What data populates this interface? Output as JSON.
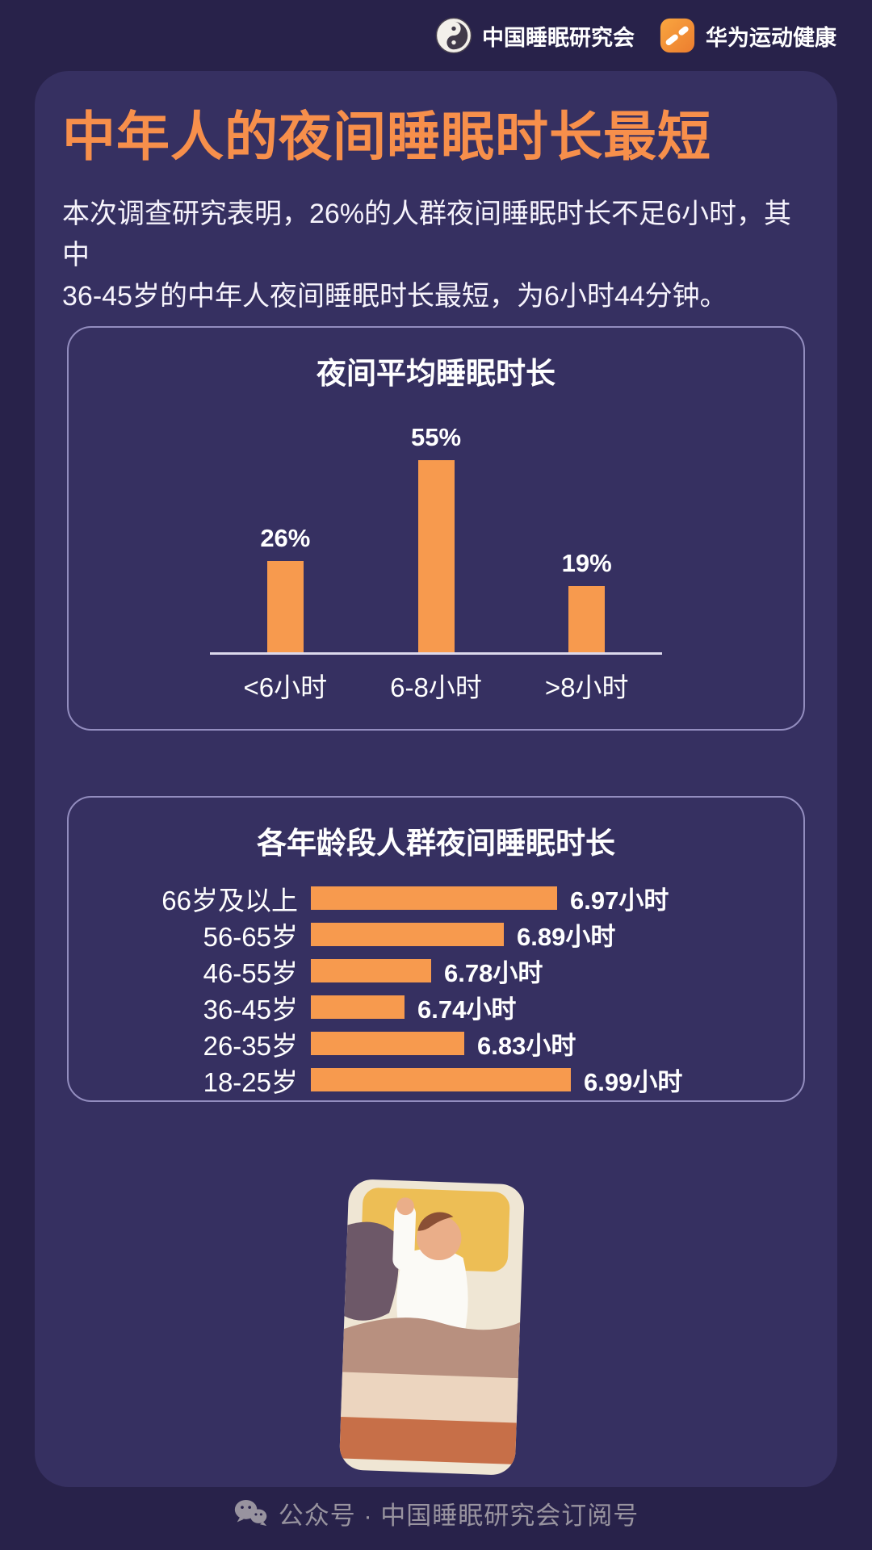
{
  "colors": {
    "background": "#28224a",
    "card": "#363061",
    "accent": "#f78f4b",
    "bar": "#f79a4e",
    "box_border": "#938dbf",
    "axis": "#dcd9ec",
    "text": "#f6f3fc",
    "footer_text": "#98939f"
  },
  "header": {
    "org1": "中国睡眠研究会",
    "org2": "华为运动健康"
  },
  "title": "中年人的夜间睡眠时长最短",
  "intro": {
    "line1": "本次调查研究表明，26%的人群夜间睡眠时长不足6小时，其中",
    "line2": "36-45岁的中年人夜间睡眠时长最短，为6小时44分钟。"
  },
  "chart_data": [
    {
      "type": "bar",
      "title": "夜间平均睡眠时长",
      "categories": [
        "<6小时",
        "6-8小时",
        ">8小时"
      ],
      "values": [
        26,
        55,
        19
      ],
      "unit": "%",
      "ylim": [
        0,
        60
      ],
      "grid": false,
      "bar_color": "#f79a4e"
    },
    {
      "type": "bar-horizontal",
      "title": "各年龄段人群夜间睡眠时长",
      "categories": [
        "66岁及以上",
        "56-65岁",
        "46-55岁",
        "36-45岁",
        "26-35岁",
        "18-25岁"
      ],
      "values": [
        6.97,
        6.89,
        6.78,
        6.74,
        6.83,
        6.99
      ],
      "unit": "小时",
      "xlim": [
        6.6,
        7.0
      ],
      "grid": false,
      "bar_color": "#f79a4e"
    }
  ],
  "footer": {
    "text": "公众号 · 中国睡眠研究会订阅号"
  }
}
